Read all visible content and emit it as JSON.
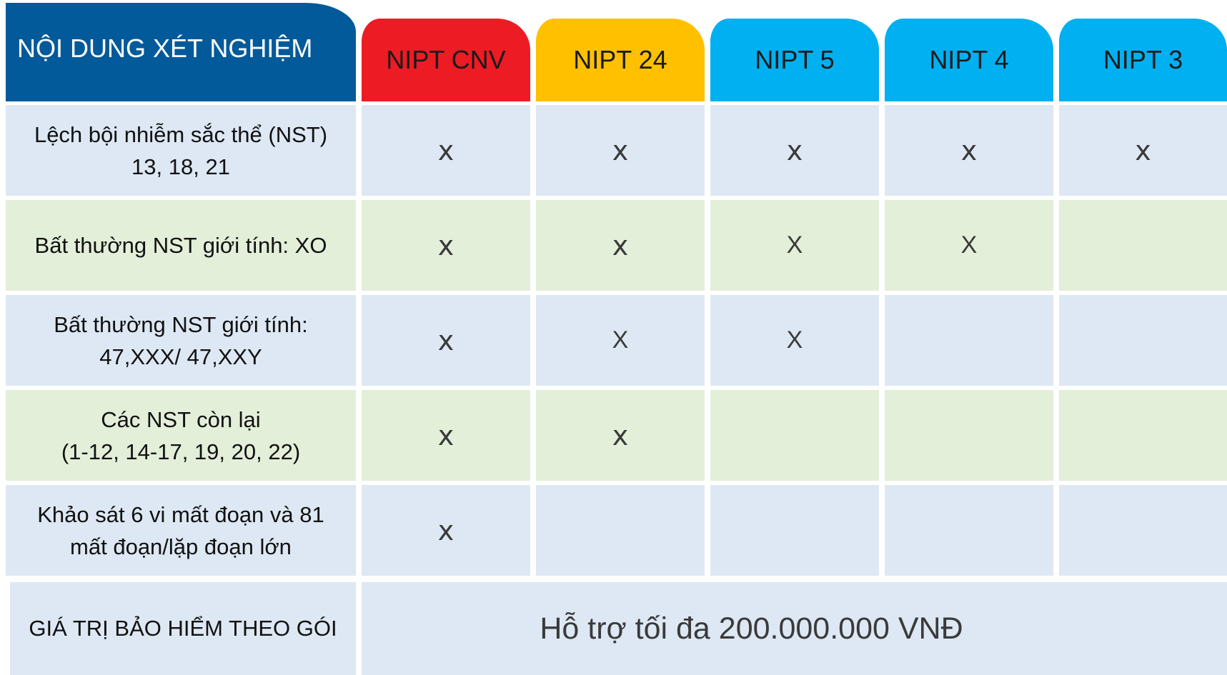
{
  "header": {
    "title": "NỘI DUNG XÉT NGHIỆM",
    "columns": [
      {
        "label": "NIPT CNV",
        "color": "#ed1b24"
      },
      {
        "label": "NIPT 24",
        "color": "#ffc000"
      },
      {
        "label": "NIPT 5",
        "color": "#00b0f0"
      },
      {
        "label": "NIPT 4",
        "color": "#00b0f0"
      },
      {
        "label": "NIPT 3",
        "color": "#00b0f0"
      }
    ]
  },
  "rows": [
    {
      "label_lines": [
        "Lệch bội nhiễm sắc thể (NST)",
        "13, 18, 21"
      ],
      "marks": [
        "x",
        "x",
        "x",
        "x",
        "x"
      ]
    },
    {
      "label_lines": [
        "Bất thường NST giới tính: XO"
      ],
      "marks": [
        "x",
        "x",
        "X",
        "X",
        ""
      ]
    },
    {
      "label_lines": [
        "Bất thường NST giới tính:",
        "47,XXX/ 47,XXY"
      ],
      "marks": [
        "x",
        "X",
        "X",
        "",
        ""
      ]
    },
    {
      "label_lines": [
        "Các NST còn lại",
        "(1-12, 14-17, 19, 20, 22)"
      ],
      "marks": [
        "x",
        "x",
        "",
        "",
        ""
      ]
    },
    {
      "label_lines": [
        "Khảo sát 6 vi mất đoạn và 81",
        "mất đoạn/lặp đoạn lớn"
      ],
      "marks": [
        "x",
        "",
        "",
        "",
        ""
      ]
    }
  ],
  "footer": {
    "label": "GIÁ TRỊ BẢO HIỂM THEO GÓI",
    "value": "Hỗ trợ tối đa 200.000.000 VNĐ"
  }
}
